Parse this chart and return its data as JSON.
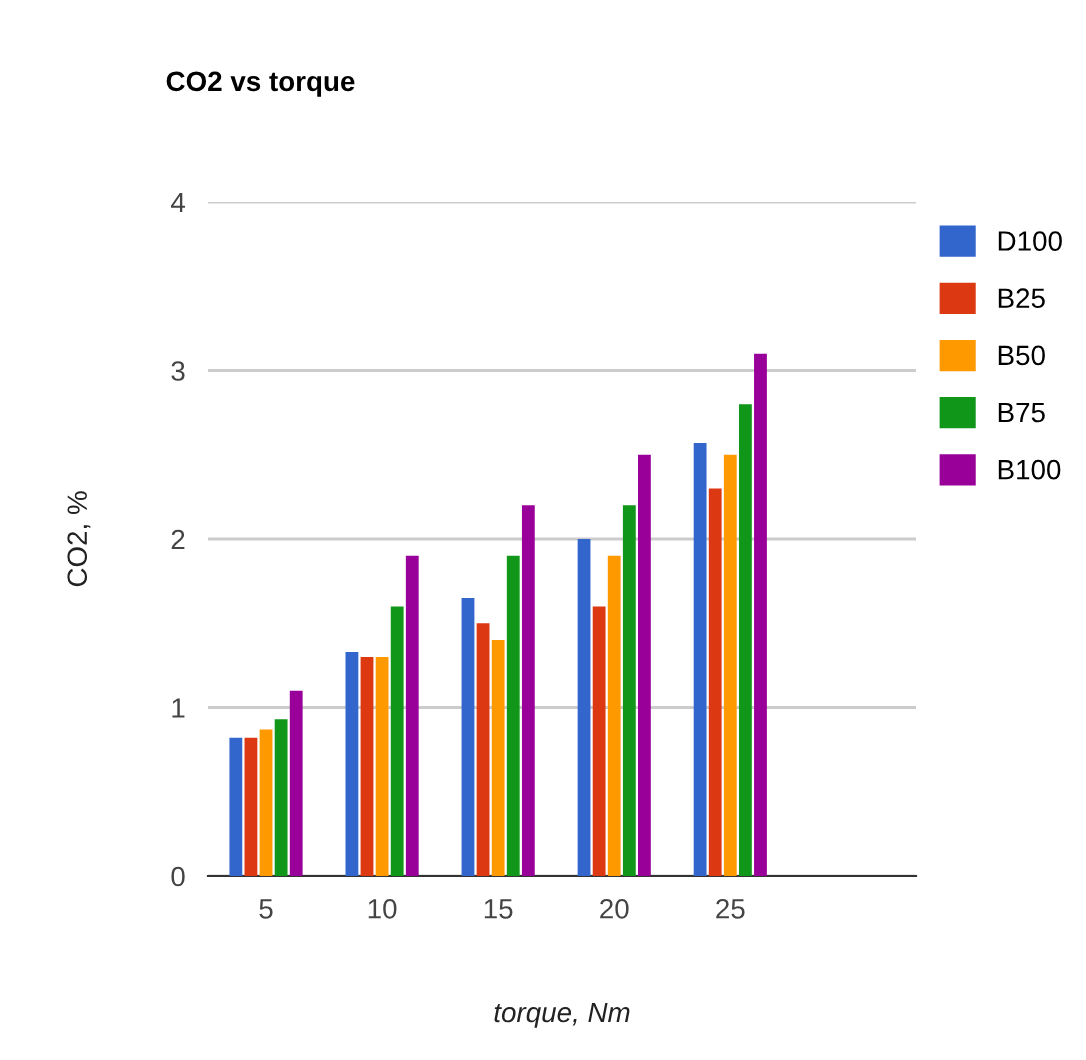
{
  "chart_data": {
    "type": "bar",
    "title": "CO2 vs torque",
    "xlabel": "torque, Nm",
    "ylabel": "CO2, %",
    "categories": [
      "5",
      "10",
      "15",
      "20",
      "25"
    ],
    "series": [
      {
        "name": "D100",
        "color": "#3366cc",
        "values": [
          0.82,
          1.33,
          1.65,
          2.0,
          2.57
        ]
      },
      {
        "name": "B25",
        "color": "#dc3912",
        "values": [
          0.82,
          1.3,
          1.5,
          1.6,
          2.3
        ]
      },
      {
        "name": "B50",
        "color": "#ff9900",
        "values": [
          0.87,
          1.3,
          1.4,
          1.9,
          2.5
        ]
      },
      {
        "name": "B75",
        "color": "#109618",
        "values": [
          0.93,
          1.6,
          1.9,
          2.2,
          2.8
        ]
      },
      {
        "name": "B100",
        "color": "#990099",
        "values": [
          1.1,
          1.9,
          2.2,
          2.5,
          3.1
        ]
      }
    ],
    "ylim": [
      0,
      4
    ],
    "yticks": [
      0,
      1,
      2,
      3,
      4
    ],
    "grid": "y",
    "legend": "right"
  }
}
